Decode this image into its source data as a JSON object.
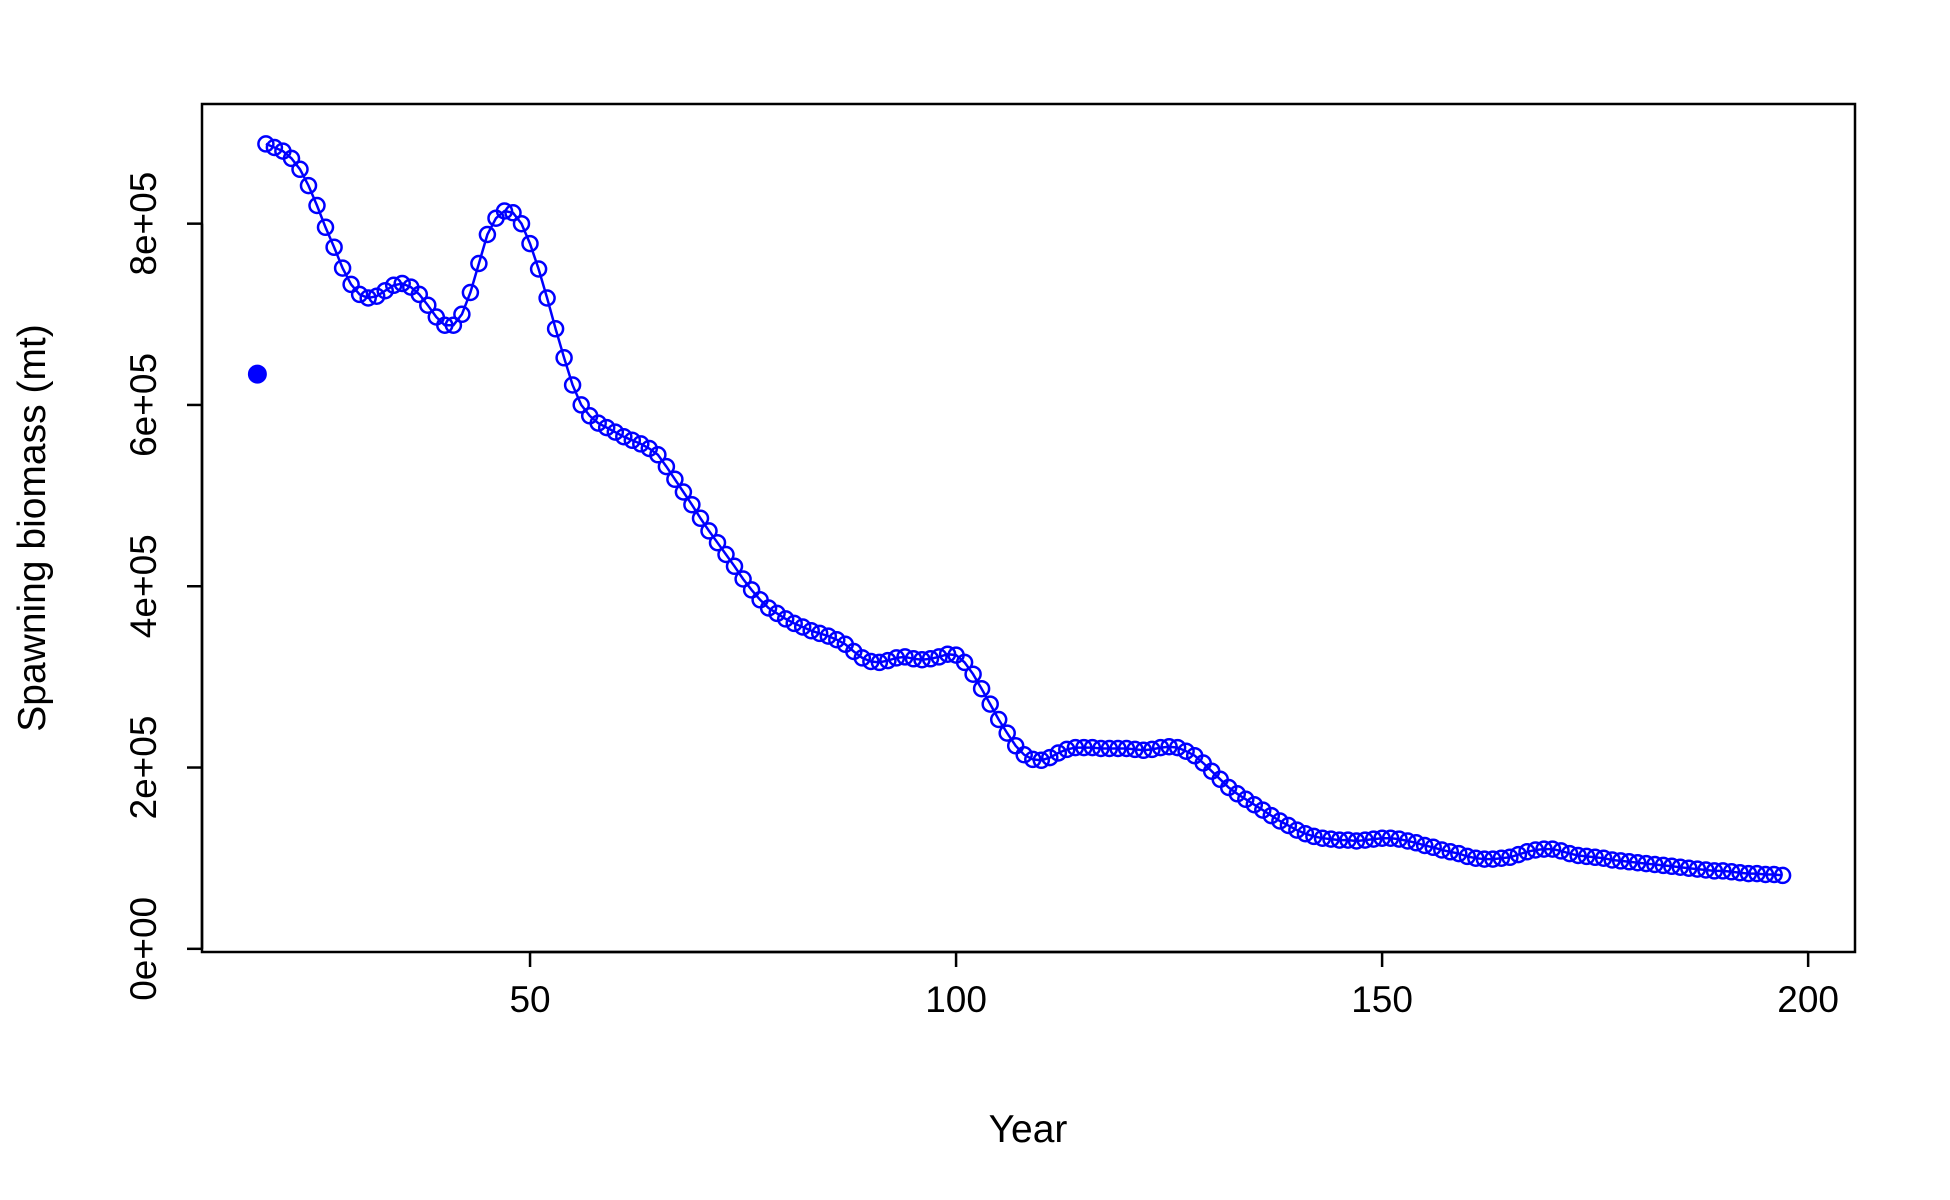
{
  "chart_data": {
    "type": "line",
    "title": "",
    "xlabel": "Year",
    "ylabel": "Spawning biomass (mt)",
    "xlim": [
      11.5,
      205.5
    ],
    "ylim": [
      -3.5,
      932
    ],
    "x_ticks": [
      50,
      100,
      150,
      200
    ],
    "x_tick_labels": [
      "50",
      "100",
      "150",
      "200"
    ],
    "y_ticks": [
      0,
      200,
      400,
      600,
      800
    ],
    "y_tick_labels": [
      "0e+00",
      "2e+05",
      "4e+05",
      "6e+05",
      "8e+05"
    ],
    "grid": false,
    "legend": "none",
    "colors": {
      "series": "#0000ff",
      "axis": "#000000"
    },
    "virgin": {
      "x": 18,
      "y": 634
    },
    "series": [
      {
        "start_year": 19,
        "end_year": 197,
        "values": [
          888,
          884,
          880,
          872,
          860,
          842,
          820,
          796,
          774,
          751,
          733,
          722,
          718,
          720,
          726,
          732,
          734,
          730,
          722,
          710,
          697,
          688,
          688,
          700,
          724,
          756,
          788,
          806,
          814,
          812,
          800,
          778,
          750,
          718,
          684,
          652,
          622,
          600,
          588,
          580,
          575,
          570,
          565,
          561,
          557,
          552,
          545,
          532,
          518,
          504,
          490,
          475,
          461,
          448,
          435,
          422,
          408,
          396,
          385,
          376,
          370,
          364,
          359,
          355,
          351,
          348,
          345,
          341,
          336,
          328,
          321,
          317,
          316,
          318,
          321,
          322,
          320,
          319,
          320,
          322,
          325,
          324,
          316,
          303,
          287,
          270,
          253,
          238,
          224,
          214,
          209,
          208,
          211,
          216,
          220,
          222,
          222,
          222,
          221,
          221,
          221,
          221,
          220,
          219,
          220,
          222,
          223,
          222,
          218,
          213,
          205,
          196,
          187,
          178,
          171,
          165,
          159,
          153,
          147,
          141,
          136,
          131,
          127,
          124,
          122,
          121,
          120,
          120,
          119,
          120,
          121,
          122,
          122,
          121,
          119,
          117,
          114,
          112,
          109,
          107,
          105,
          102,
          100,
          99,
          99,
          100,
          101,
          104,
          107,
          109,
          110,
          110,
          108,
          105,
          103,
          102,
          101,
          100,
          98,
          97,
          96,
          95,
          94,
          93,
          92,
          91,
          90,
          89,
          88,
          87,
          86,
          86,
          85,
          84,
          83,
          83,
          82,
          82,
          81
        ]
      }
    ]
  }
}
